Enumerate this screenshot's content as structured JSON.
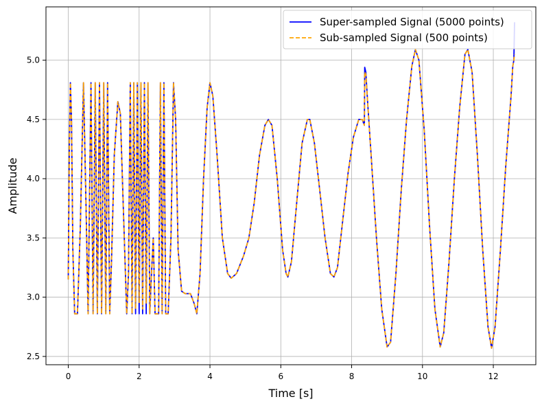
{
  "chart_data": {
    "type": "line",
    "title": "",
    "xlabel": "Time [s]",
    "ylabel": "Amplitude",
    "xlim": [
      -0.63,
      13.2
    ],
    "ylim": [
      2.43,
      5.45
    ],
    "xticks": [
      0,
      2,
      4,
      6,
      8,
      10,
      12
    ],
    "yticks": [
      2.5,
      3.0,
      3.5,
      4.0,
      4.5,
      5.0
    ],
    "xtick_labels": [
      "0",
      "2",
      "4",
      "6",
      "8",
      "10",
      "12"
    ],
    "ytick_labels": [
      "2.5",
      "3.0",
      "3.5",
      "4.0",
      "4.5",
      "5.0"
    ],
    "grid": true,
    "legend_position": "top-right",
    "series": [
      {
        "name": "Super-sampled Signal (5000 points)",
        "color": "#0000ff",
        "style": "solid",
        "points": [
          [
            0.0,
            3.15
          ],
          [
            0.03,
            4.3
          ],
          [
            0.06,
            4.81
          ],
          [
            0.09,
            4.5
          ],
          [
            0.13,
            3.4
          ],
          [
            0.18,
            2.86
          ],
          [
            0.26,
            2.86
          ],
          [
            0.34,
            3.6
          ],
          [
            0.43,
            4.81
          ],
          [
            0.5,
            3.8
          ],
          [
            0.56,
            2.86
          ],
          [
            0.64,
            4.81
          ],
          [
            0.7,
            2.86
          ],
          [
            0.76,
            4.81
          ],
          [
            0.82,
            2.86
          ],
          [
            0.88,
            4.81
          ],
          [
            0.94,
            2.86
          ],
          [
            1.0,
            4.81
          ],
          [
            1.06,
            2.86
          ],
          [
            1.11,
            4.81
          ],
          [
            1.17,
            2.86
          ],
          [
            1.22,
            3.3
          ],
          [
            1.3,
            4.2
          ],
          [
            1.4,
            4.65
          ],
          [
            1.47,
            4.55
          ],
          [
            1.55,
            3.8
          ],
          [
            1.65,
            2.86
          ],
          [
            1.7,
            3.2
          ],
          [
            1.75,
            4.81
          ],
          [
            1.8,
            2.86
          ],
          [
            1.85,
            4.81
          ],
          [
            1.9,
            2.86
          ],
          [
            1.95,
            4.81
          ],
          [
            2.0,
            2.86
          ],
          [
            2.05,
            4.81
          ],
          [
            2.1,
            2.86
          ],
          [
            2.15,
            4.81
          ],
          [
            2.2,
            2.86
          ],
          [
            2.25,
            4.81
          ],
          [
            2.3,
            2.86
          ],
          [
            2.35,
            3.2
          ],
          [
            2.4,
            3.5
          ],
          [
            2.45,
            2.86
          ],
          [
            2.55,
            2.86
          ],
          [
            2.6,
            4.81
          ],
          [
            2.65,
            2.86
          ],
          [
            2.7,
            4.81
          ],
          [
            2.75,
            2.86
          ],
          [
            2.82,
            2.86
          ],
          [
            2.9,
            3.5
          ],
          [
            2.97,
            4.81
          ],
          [
            3.03,
            4.5
          ],
          [
            3.1,
            3.4
          ],
          [
            3.2,
            3.05
          ],
          [
            3.3,
            3.03
          ],
          [
            3.45,
            3.03
          ],
          [
            3.55,
            2.95
          ],
          [
            3.63,
            2.86
          ],
          [
            3.72,
            3.2
          ],
          [
            3.82,
            4.0
          ],
          [
            3.92,
            4.6
          ],
          [
            4.0,
            4.81
          ],
          [
            4.08,
            4.7
          ],
          [
            4.2,
            4.2
          ],
          [
            4.35,
            3.5
          ],
          [
            4.5,
            3.2
          ],
          [
            4.6,
            3.16
          ],
          [
            4.75,
            3.2
          ],
          [
            4.95,
            3.35
          ],
          [
            5.1,
            3.5
          ],
          [
            5.25,
            3.8
          ],
          [
            5.4,
            4.2
          ],
          [
            5.55,
            4.45
          ],
          [
            5.65,
            4.5
          ],
          [
            5.75,
            4.45
          ],
          [
            5.9,
            4.0
          ],
          [
            6.05,
            3.4
          ],
          [
            6.15,
            3.2
          ],
          [
            6.2,
            3.17
          ],
          [
            6.3,
            3.3
          ],
          [
            6.45,
            3.8
          ],
          [
            6.6,
            4.3
          ],
          [
            6.75,
            4.5
          ],
          [
            6.82,
            4.5
          ],
          [
            6.95,
            4.3
          ],
          [
            7.1,
            3.9
          ],
          [
            7.25,
            3.5
          ],
          [
            7.4,
            3.2
          ],
          [
            7.5,
            3.17
          ],
          [
            7.6,
            3.25
          ],
          [
            7.75,
            3.65
          ],
          [
            7.9,
            4.05
          ],
          [
            8.05,
            4.35
          ],
          [
            8.2,
            4.5
          ],
          [
            8.3,
            4.5
          ],
          [
            8.36,
            4.45
          ],
          [
            8.37,
            4.94
          ],
          [
            8.4,
            4.9
          ],
          [
            8.45,
            4.65
          ],
          [
            8.55,
            4.2
          ],
          [
            8.7,
            3.5
          ],
          [
            8.85,
            2.9
          ],
          [
            9.0,
            2.58
          ],
          [
            9.1,
            2.62
          ],
          [
            9.25,
            3.2
          ],
          [
            9.4,
            3.9
          ],
          [
            9.55,
            4.5
          ],
          [
            9.7,
            4.95
          ],
          [
            9.8,
            5.09
          ],
          [
            9.9,
            5.0
          ],
          [
            10.05,
            4.4
          ],
          [
            10.2,
            3.6
          ],
          [
            10.35,
            2.9
          ],
          [
            10.5,
            2.58
          ],
          [
            10.6,
            2.7
          ],
          [
            10.75,
            3.3
          ],
          [
            10.9,
            4.0
          ],
          [
            11.05,
            4.6
          ],
          [
            11.2,
            5.05
          ],
          [
            11.28,
            5.09
          ],
          [
            11.4,
            4.9
          ],
          [
            11.55,
            4.2
          ],
          [
            11.7,
            3.4
          ],
          [
            11.85,
            2.75
          ],
          [
            11.95,
            2.57
          ],
          [
            12.05,
            2.75
          ],
          [
            12.2,
            3.4
          ],
          [
            12.35,
            4.1
          ],
          [
            12.5,
            4.7
          ],
          [
            12.55,
            4.95
          ],
          [
            12.58,
            5.0
          ],
          [
            12.6,
            5.32
          ]
        ]
      },
      {
        "name": "Sub-sampled Signal (500 points)",
        "color": "#ffa500",
        "style": "dashed",
        "points": [
          [
            0.0,
            3.15
          ],
          [
            0.03,
            4.3
          ],
          [
            0.06,
            4.81
          ],
          [
            0.09,
            4.5
          ],
          [
            0.13,
            3.4
          ],
          [
            0.18,
            2.86
          ],
          [
            0.26,
            2.86
          ],
          [
            0.34,
            3.6
          ],
          [
            0.43,
            4.81
          ],
          [
            0.5,
            3.8
          ],
          [
            0.56,
            2.86
          ],
          [
            0.64,
            4.81
          ],
          [
            0.7,
            2.86
          ],
          [
            0.76,
            4.81
          ],
          [
            0.82,
            2.86
          ],
          [
            0.88,
            4.81
          ],
          [
            0.94,
            2.86
          ],
          [
            1.0,
            4.81
          ],
          [
            1.06,
            2.86
          ],
          [
            1.11,
            4.81
          ],
          [
            1.17,
            2.86
          ],
          [
            1.22,
            3.3
          ],
          [
            1.3,
            4.2
          ],
          [
            1.4,
            4.65
          ],
          [
            1.47,
            4.55
          ],
          [
            1.55,
            3.8
          ],
          [
            1.65,
            2.86
          ],
          [
            1.7,
            3.2
          ],
          [
            1.75,
            4.81
          ],
          [
            1.8,
            2.86
          ],
          [
            1.85,
            4.81
          ],
          [
            1.9,
            2.9
          ],
          [
            1.95,
            4.81
          ],
          [
            2.0,
            2.95
          ],
          [
            2.05,
            4.81
          ],
          [
            2.1,
            2.9
          ],
          [
            2.15,
            4.81
          ],
          [
            2.2,
            2.95
          ],
          [
            2.25,
            4.81
          ],
          [
            2.3,
            2.86
          ],
          [
            2.35,
            3.2
          ],
          [
            2.4,
            3.5
          ],
          [
            2.45,
            2.86
          ],
          [
            2.55,
            2.86
          ],
          [
            2.6,
            4.81
          ],
          [
            2.65,
            2.86
          ],
          [
            2.7,
            4.81
          ],
          [
            2.75,
            2.86
          ],
          [
            2.82,
            2.86
          ],
          [
            2.9,
            3.5
          ],
          [
            2.97,
            4.81
          ],
          [
            3.03,
            4.5
          ],
          [
            3.1,
            3.4
          ],
          [
            3.2,
            3.05
          ],
          [
            3.3,
            3.03
          ],
          [
            3.45,
            3.03
          ],
          [
            3.55,
            2.95
          ],
          [
            3.63,
            2.86
          ],
          [
            3.72,
            3.2
          ],
          [
            3.82,
            4.0
          ],
          [
            3.92,
            4.6
          ],
          [
            4.0,
            4.81
          ],
          [
            4.08,
            4.7
          ],
          [
            4.2,
            4.2
          ],
          [
            4.35,
            3.5
          ],
          [
            4.5,
            3.2
          ],
          [
            4.6,
            3.16
          ],
          [
            4.75,
            3.2
          ],
          [
            4.95,
            3.35
          ],
          [
            5.1,
            3.5
          ],
          [
            5.25,
            3.8
          ],
          [
            5.4,
            4.2
          ],
          [
            5.55,
            4.45
          ],
          [
            5.65,
            4.5
          ],
          [
            5.75,
            4.45
          ],
          [
            5.9,
            4.0
          ],
          [
            6.05,
            3.4
          ],
          [
            6.15,
            3.2
          ],
          [
            6.2,
            3.17
          ],
          [
            6.3,
            3.3
          ],
          [
            6.45,
            3.8
          ],
          [
            6.6,
            4.3
          ],
          [
            6.75,
            4.5
          ],
          [
            6.82,
            4.5
          ],
          [
            6.95,
            4.3
          ],
          [
            7.1,
            3.9
          ],
          [
            7.25,
            3.5
          ],
          [
            7.4,
            3.2
          ],
          [
            7.5,
            3.17
          ],
          [
            7.6,
            3.25
          ],
          [
            7.75,
            3.65
          ],
          [
            7.9,
            4.05
          ],
          [
            8.05,
            4.35
          ],
          [
            8.2,
            4.5
          ],
          [
            8.3,
            4.5
          ],
          [
            8.36,
            4.45
          ],
          [
            8.37,
            4.9
          ],
          [
            8.4,
            4.88
          ],
          [
            8.45,
            4.65
          ],
          [
            8.55,
            4.2
          ],
          [
            8.7,
            3.5
          ],
          [
            8.85,
            2.9
          ],
          [
            9.0,
            2.58
          ],
          [
            9.1,
            2.62
          ],
          [
            9.25,
            3.2
          ],
          [
            9.4,
            3.9
          ],
          [
            9.55,
            4.5
          ],
          [
            9.7,
            4.95
          ],
          [
            9.8,
            5.09
          ],
          [
            9.9,
            5.0
          ],
          [
            10.05,
            4.4
          ],
          [
            10.2,
            3.6
          ],
          [
            10.35,
            2.9
          ],
          [
            10.5,
            2.58
          ],
          [
            10.6,
            2.7
          ],
          [
            10.75,
            3.3
          ],
          [
            10.9,
            4.0
          ],
          [
            11.05,
            4.6
          ],
          [
            11.2,
            5.05
          ],
          [
            11.28,
            5.09
          ],
          [
            11.4,
            4.9
          ],
          [
            11.55,
            4.2
          ],
          [
            11.7,
            3.4
          ],
          [
            11.85,
            2.75
          ],
          [
            11.95,
            2.57
          ],
          [
            12.05,
            2.75
          ],
          [
            12.2,
            3.4
          ],
          [
            12.35,
            4.1
          ],
          [
            12.5,
            4.7
          ],
          [
            12.55,
            4.95
          ],
          [
            12.58,
            5.0
          ],
          [
            12.6,
            5.05
          ]
        ]
      }
    ]
  }
}
